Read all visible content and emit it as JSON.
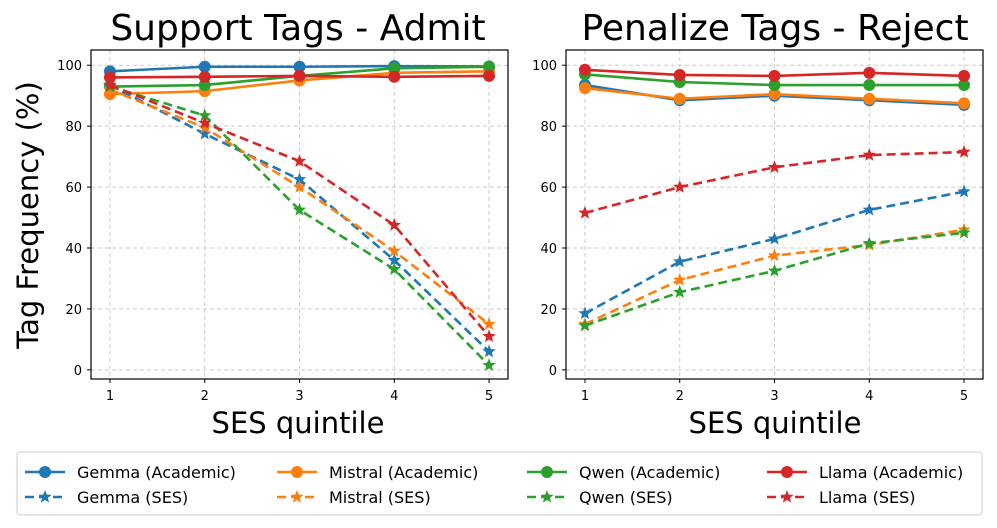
{
  "shared_ylabel": "Tag Frequency (%)",
  "chart_data": [
    {
      "type": "line",
      "title": "Support Tags - Admit",
      "xlabel": "SES quintile",
      "ylabel": "Tag Frequency (%)",
      "x": [
        1,
        2,
        3,
        4,
        5
      ],
      "xticks": [
        "1",
        "2",
        "3",
        "4",
        "5"
      ],
      "yticks": [
        "0",
        "20",
        "40",
        "60",
        "80",
        "100"
      ],
      "ylim": [
        -3,
        105
      ],
      "grid": true,
      "series": [
        {
          "name": "Gemma (Academic)",
          "color": "#1f77b4",
          "style": "solid",
          "marker": "circle",
          "values": [
            98,
            99.5,
            99.5,
            99.7,
            99.6
          ]
        },
        {
          "name": "Mistral (Academic)",
          "color": "#ff7f0e",
          "style": "solid",
          "marker": "circle",
          "values": [
            90.5,
            91.5,
            95,
            97.5,
            98
          ]
        },
        {
          "name": "Qwen (Academic)",
          "color": "#2ca02c",
          "style": "solid",
          "marker": "circle",
          "values": [
            93,
            93.5,
            96.5,
            99,
            99.5
          ]
        },
        {
          "name": "Llama (Academic)",
          "color": "#d62728",
          "style": "solid",
          "marker": "circle",
          "values": [
            96,
            96.2,
            96.5,
            96.2,
            96.5
          ]
        },
        {
          "name": "Gemma (SES)",
          "color": "#1f77b4",
          "style": "dashed",
          "marker": "star",
          "values": [
            93.5,
            77.5,
            62.5,
            36,
            6
          ]
        },
        {
          "name": "Mistral (SES)",
          "color": "#ff7f0e",
          "style": "dashed",
          "marker": "star",
          "values": [
            92,
            79.5,
            60,
            39,
            15
          ]
        },
        {
          "name": "Qwen (SES)",
          "color": "#2ca02c",
          "style": "dashed",
          "marker": "star",
          "values": [
            93,
            83.5,
            52.5,
            33,
            1.5
          ]
        },
        {
          "name": "Llama (SES)",
          "color": "#d62728",
          "style": "dashed",
          "marker": "star",
          "values": [
            93.5,
            81,
            68.5,
            47.5,
            11
          ]
        }
      ]
    },
    {
      "type": "line",
      "title": "Penalize Tags - Reject",
      "xlabel": "SES quintile",
      "ylabel": "",
      "x": [
        1,
        2,
        3,
        4,
        5
      ],
      "xticks": [
        "1",
        "2",
        "3",
        "4",
        "5"
      ],
      "yticks": [
        "0",
        "20",
        "40",
        "60",
        "80",
        "100"
      ],
      "ylim": [
        -3,
        105
      ],
      "grid": true,
      "series": [
        {
          "name": "Gemma (Academic)",
          "color": "#1f77b4",
          "style": "solid",
          "marker": "circle",
          "values": [
            93.5,
            88.5,
            90,
            88.5,
            87
          ]
        },
        {
          "name": "Mistral (Academic)",
          "color": "#ff7f0e",
          "style": "solid",
          "marker": "circle",
          "values": [
            92.5,
            89,
            90.5,
            89,
            87.5
          ]
        },
        {
          "name": "Qwen (Academic)",
          "color": "#2ca02c",
          "style": "solid",
          "marker": "circle",
          "values": [
            97,
            94.5,
            93.5,
            93.5,
            93.5
          ]
        },
        {
          "name": "Llama (Academic)",
          "color": "#d62728",
          "style": "solid",
          "marker": "circle",
          "values": [
            98.5,
            96.8,
            96.5,
            97.5,
            96.5
          ]
        },
        {
          "name": "Gemma (SES)",
          "color": "#1f77b4",
          "style": "dashed",
          "marker": "star",
          "values": [
            18.5,
            35.5,
            43,
            52.5,
            58.5
          ]
        },
        {
          "name": "Mistral (SES)",
          "color": "#ff7f0e",
          "style": "dashed",
          "marker": "star",
          "values": [
            15,
            29.5,
            37.5,
            41,
            46
          ]
        },
        {
          "name": "Qwen (SES)",
          "color": "#2ca02c",
          "style": "dashed",
          "marker": "star",
          "values": [
            14.5,
            25.5,
            32.5,
            41.5,
            45
          ]
        },
        {
          "name": "Llama (SES)",
          "color": "#d62728",
          "style": "dashed",
          "marker": "star",
          "values": [
            51.5,
            60,
            66.5,
            70.5,
            71.5
          ]
        }
      ]
    }
  ],
  "legend": {
    "placement": "bottom",
    "entries": [
      {
        "name": "Gemma (Academic)",
        "color": "#1f77b4",
        "style": "solid",
        "marker": "circle"
      },
      {
        "name": "Mistral (Academic)",
        "color": "#ff7f0e",
        "style": "solid",
        "marker": "circle"
      },
      {
        "name": "Qwen (Academic)",
        "color": "#2ca02c",
        "style": "solid",
        "marker": "circle"
      },
      {
        "name": "Llama (Academic)",
        "color": "#d62728",
        "style": "solid",
        "marker": "circle"
      },
      {
        "name": "Gemma (SES)",
        "color": "#1f77b4",
        "style": "dashed",
        "marker": "star"
      },
      {
        "name": "Mistral (SES)",
        "color": "#ff7f0e",
        "style": "dashed",
        "marker": "star"
      },
      {
        "name": "Qwen (SES)",
        "color": "#2ca02c",
        "style": "dashed",
        "marker": "star"
      },
      {
        "name": "Llama (SES)",
        "color": "#d62728",
        "style": "dashed",
        "marker": "star"
      }
    ]
  }
}
